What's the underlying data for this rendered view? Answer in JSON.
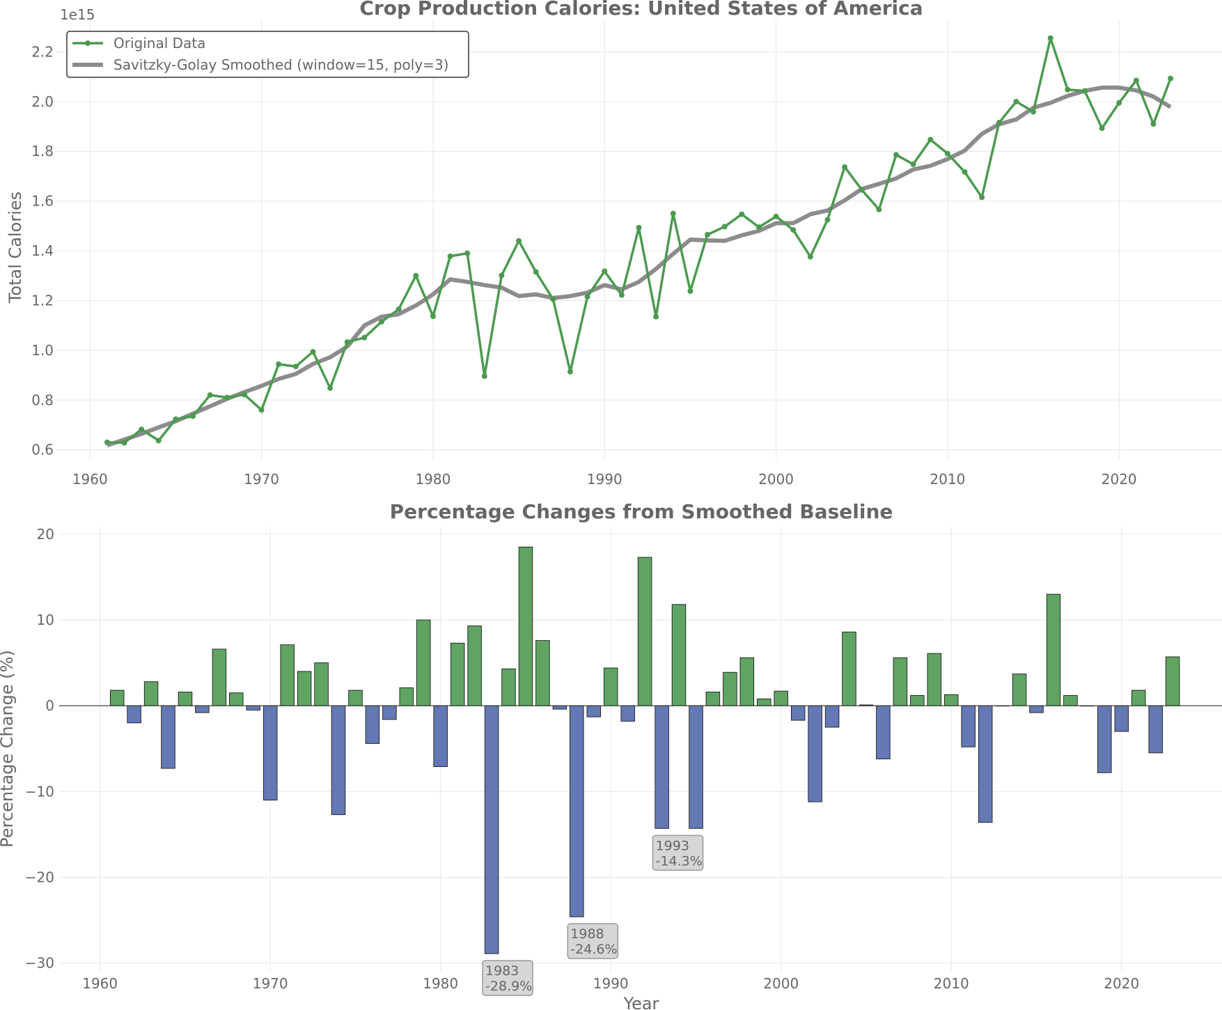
{
  "chart_data": [
    {
      "type": "line",
      "title": "Crop Production Calories: United States of America",
      "ylabel": "Total Calories",
      "xlabel": "",
      "y_offset_label": "1e15",
      "xlim": [
        1958,
        2026
      ],
      "ylim": [
        0.56,
        2.33
      ],
      "y_multiplier": 1000000000000000.0,
      "x_ticks": [
        "1960",
        "1970",
        "1980",
        "1990",
        "2000",
        "2010",
        "2020"
      ],
      "y_ticks": [
        "0.6",
        "0.8",
        "1.0",
        "1.2",
        "1.4",
        "1.6",
        "1.8",
        "2.0",
        "2.2"
      ],
      "grid": true,
      "legend_position": "top-left",
      "x": [
        1961,
        1962,
        1963,
        1964,
        1965,
        1966,
        1967,
        1968,
        1969,
        1970,
        1971,
        1972,
        1973,
        1974,
        1975,
        1976,
        1977,
        1978,
        1979,
        1980,
        1981,
        1982,
        1983,
        1984,
        1985,
        1986,
        1987,
        1988,
        1989,
        1990,
        1991,
        1992,
        1993,
        1994,
        1995,
        1996,
        1997,
        1998,
        1999,
        2000,
        2001,
        2002,
        2003,
        2004,
        2005,
        2006,
        2007,
        2008,
        2009,
        2010,
        2011,
        2012,
        2013,
        2014,
        2015,
        2016,
        2017,
        2018,
        2019,
        2020,
        2021,
        2022,
        2023
      ],
      "series": [
        {
          "name": "Original Data",
          "color": "#4c9a50",
          "values": [
            0.63,
            0.628,
            0.682,
            0.637,
            0.723,
            0.735,
            0.82,
            0.81,
            0.822,
            0.76,
            0.944,
            0.935,
            0.994,
            0.848,
            1.033,
            1.051,
            1.115,
            1.165,
            1.3,
            1.137,
            1.378,
            1.39,
            0.896,
            1.301,
            1.44,
            1.315,
            1.205,
            0.914,
            1.215,
            1.318,
            1.222,
            1.493,
            1.135,
            1.55,
            1.238,
            1.465,
            1.497,
            1.547,
            1.495,
            1.538,
            1.484,
            1.376,
            1.525,
            1.737,
            1.645,
            1.566,
            1.786,
            1.748,
            1.847,
            1.791,
            1.717,
            1.615,
            1.915,
            2.0,
            1.959,
            2.255,
            2.048,
            2.043,
            1.893,
            1.995,
            2.085,
            1.91,
            2.093
          ]
        },
        {
          "name": "Savitzky-Golay Smoothed (window=15, poly=3)",
          "color": "#8c8c8f",
          "values": [
            0.618,
            0.641,
            0.664,
            0.69,
            0.715,
            0.745,
            0.775,
            0.805,
            0.832,
            0.857,
            0.885,
            0.905,
            0.945,
            0.972,
            1.015,
            1.1,
            1.135,
            1.145,
            1.18,
            1.225,
            1.285,
            1.275,
            1.262,
            1.252,
            1.218,
            1.225,
            1.21,
            1.218,
            1.232,
            1.262,
            1.245,
            1.275,
            1.327,
            1.388,
            1.445,
            1.442,
            1.44,
            1.462,
            1.48,
            1.511,
            1.511,
            1.547,
            1.562,
            1.603,
            1.649,
            1.669,
            1.691,
            1.727,
            1.742,
            1.769,
            1.803,
            1.87,
            1.909,
            1.928,
            1.975,
            1.995,
            2.023,
            2.043,
            2.056,
            2.056,
            2.045,
            2.02,
            1.978
          ]
        }
      ]
    },
    {
      "type": "bar",
      "title": "Percentage Changes from Smoothed Baseline",
      "xlabel": "Year",
      "ylabel": "Percentage Change (%)",
      "xlim": [
        1957.6,
        2025.9
      ],
      "ylim": [
        -31,
        20.8
      ],
      "x_ticks": [
        "1960",
        "1970",
        "1980",
        "1990",
        "2000",
        "2010",
        "2020"
      ],
      "y_ticks": [
        "20",
        "10",
        "0",
        "−10",
        "−20",
        "−30"
      ],
      "grid": true,
      "positive_color": "#5fa463",
      "negative_color": "#6478b4",
      "x": [
        1961,
        1962,
        1963,
        1964,
        1965,
        1966,
        1967,
        1968,
        1969,
        1970,
        1971,
        1972,
        1973,
        1974,
        1975,
        1976,
        1977,
        1978,
        1979,
        1980,
        1981,
        1982,
        1983,
        1984,
        1985,
        1986,
        1987,
        1988,
        1989,
        1990,
        1991,
        1992,
        1993,
        1994,
        1995,
        1996,
        1997,
        1998,
        1999,
        2000,
        2001,
        2002,
        2003,
        2004,
        2005,
        2006,
        2007,
        2008,
        2009,
        2010,
        2011,
        2012,
        2013,
        2014,
        2015,
        2016,
        2017,
        2018,
        2019,
        2020,
        2021,
        2022,
        2023
      ],
      "values": [
        1.8,
        -2.0,
        2.8,
        -7.3,
        1.6,
        -0.8,
        6.6,
        1.5,
        -0.5,
        -11.0,
        7.1,
        4.0,
        5.0,
        -12.7,
        1.8,
        -4.4,
        -1.6,
        2.1,
        10.0,
        -7.1,
        7.3,
        9.3,
        -28.9,
        4.3,
        18.5,
        7.6,
        -0.4,
        -24.6,
        -1.3,
        4.4,
        -1.8,
        17.3,
        -14.3,
        11.8,
        -14.3,
        1.6,
        3.9,
        5.6,
        0.8,
        1.7,
        -1.7,
        -11.2,
        -2.5,
        8.6,
        0.1,
        -6.2,
        5.6,
        1.2,
        6.1,
        1.3,
        -4.8,
        -13.6,
        0.0,
        3.7,
        -0.8,
        13.0,
        1.2,
        0.0,
        -7.8,
        -3.0,
        1.8,
        -5.5,
        5.7
      ],
      "annotations": [
        {
          "year": 1983,
          "value": -28.9,
          "line1": "1983",
          "line2": "-28.9%"
        },
        {
          "year": 1988,
          "value": -24.6,
          "line1": "1988",
          "line2": "-24.6%"
        },
        {
          "year": 1993,
          "value": -14.3,
          "line1": "1993",
          "line2": "-14.3%"
        }
      ]
    }
  ]
}
